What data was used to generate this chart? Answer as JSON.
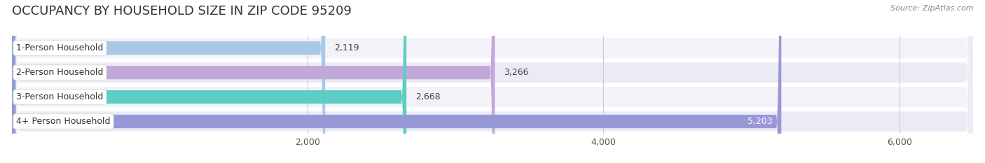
{
  "title": "OCCUPANCY BY HOUSEHOLD SIZE IN ZIP CODE 95209",
  "source": "Source: ZipAtlas.com",
  "categories": [
    "1-Person Household",
    "2-Person Household",
    "3-Person Household",
    "4+ Person Household"
  ],
  "values": [
    2119,
    3266,
    2668,
    5203
  ],
  "bar_colors": [
    "#a8c8e8",
    "#c0a8d8",
    "#5ecec4",
    "#9898d8"
  ],
  "bar_label_colors": [
    "#444444",
    "#444444",
    "#444444",
    "#ffffff"
  ],
  "xlim": [
    0,
    6500
  ],
  "xticks": [
    2000,
    4000,
    6000
  ],
  "xtick_labels": [
    "2,000",
    "4,000",
    "6,000"
  ],
  "background_color": "#ffffff",
  "row_bg_even": "#f2f2f8",
  "row_bg_odd": "#ebebf5",
  "title_fontsize": 13,
  "source_fontsize": 8,
  "bar_label_fontsize": 9,
  "tick_label_fontsize": 9,
  "category_fontsize": 9
}
